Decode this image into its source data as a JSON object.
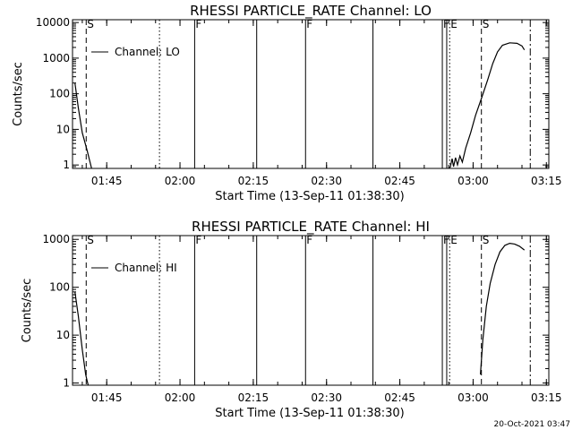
{
  "footer_timestamp": "20-Oct-2021 03:47",
  "chart_data": [
    {
      "type": "line",
      "title": "RHESSI PARTICLE_RATE Channel: LO",
      "xlabel": "Start Time (13-Sep-11 01:38:30)",
      "ylabel": "Counts/sec",
      "yscale": "log",
      "xlim": [
        -0.5,
        97
      ],
      "ylim": [
        0.8,
        12000
      ],
      "x_unit": "minutes after 01:38:30",
      "x_ticks": [
        {
          "x": 6.5,
          "label": "01:45"
        },
        {
          "x": 21.5,
          "label": "02:00"
        },
        {
          "x": 36.5,
          "label": "02:15"
        },
        {
          "x": 51.5,
          "label": "02:30"
        },
        {
          "x": 66.5,
          "label": "02:45"
        },
        {
          "x": 81.5,
          "label": "03:00"
        },
        {
          "x": 96.5,
          "label": "03:15"
        }
      ],
      "y_ticks": [
        {
          "y": 1,
          "label": "1"
        },
        {
          "y": 10,
          "label": "10"
        },
        {
          "y": 100,
          "label": "100"
        },
        {
          "y": 1000,
          "label": "1000"
        },
        {
          "y": 10000,
          "label": "10000"
        }
      ],
      "legend": {
        "label": "Channel: LO",
        "placement": "top-left"
      },
      "series": [
        {
          "name": "Channel: LO",
          "segments": [
            [
              [
                0,
                200
              ],
              [
                0.7,
                40
              ],
              [
                1.5,
                8
              ],
              [
                2.5,
                2.5
              ],
              [
                3.4,
                0.8
              ]
            ],
            [
              [
                76.8,
                0.85
              ],
              [
                77.2,
                1.5
              ],
              [
                77.5,
                0.9
              ],
              [
                77.9,
                1.6
              ],
              [
                78.3,
                1.0
              ],
              [
                78.8,
                1.8
              ],
              [
                79.3,
                1.2
              ],
              [
                80.0,
                3.0
              ],
              [
                81.0,
                8.0
              ],
              [
                82.0,
                25
              ],
              [
                83.3,
                80
              ],
              [
                84.5,
                250
              ],
              [
                85.5,
                700
              ],
              [
                86.5,
                1500
              ],
              [
                87.5,
                2300
              ],
              [
                89.0,
                2700
              ],
              [
                90.5,
                2600
              ],
              [
                91.5,
                2200
              ],
              [
                92.0,
                1700
              ]
            ]
          ]
        }
      ],
      "markers": [
        {
          "x": 2.3,
          "style": "dashed",
          "label": "S"
        },
        {
          "x": 17.3,
          "style": "dotted",
          "label": ""
        },
        {
          "x": 24.5,
          "style": "solid",
          "label": "F"
        },
        {
          "x": 37.2,
          "style": "solid",
          "label": ""
        },
        {
          "x": 47.2,
          "style": "solid",
          "label": "F"
        },
        {
          "x": 61.0,
          "style": "solid",
          "label": ""
        },
        {
          "x": 75.2,
          "style": "solid",
          "label": "F"
        },
        {
          "x": 76.1,
          "style": "solid",
          "label": ""
        },
        {
          "x": 76.7,
          "style": "dotted",
          "label": "E"
        },
        {
          "x": 83.2,
          "style": "dashed",
          "label": "S"
        },
        {
          "x": 93.2,
          "style": "dashdot",
          "label": ""
        }
      ]
    },
    {
      "type": "line",
      "title": "RHESSI PARTICLE_RATE Channel: HI",
      "xlabel": "Start Time (13-Sep-11 01:38:30)",
      "ylabel": "Counts/sec",
      "yscale": "log",
      "xlim": [
        -0.5,
        97
      ],
      "ylim": [
        0.9,
        1200
      ],
      "x_unit": "minutes after 01:38:30",
      "x_ticks": [
        {
          "x": 6.5,
          "label": "01:45"
        },
        {
          "x": 21.5,
          "label": "02:00"
        },
        {
          "x": 36.5,
          "label": "02:15"
        },
        {
          "x": 51.5,
          "label": "02:30"
        },
        {
          "x": 66.5,
          "label": "02:45"
        },
        {
          "x": 81.5,
          "label": "03:00"
        },
        {
          "x": 96.5,
          "label": "03:15"
        }
      ],
      "y_ticks": [
        {
          "y": 1,
          "label": "1"
        },
        {
          "y": 10,
          "label": "10"
        },
        {
          "y": 100,
          "label": "100"
        },
        {
          "y": 1000,
          "label": "1000"
        }
      ],
      "legend": {
        "label": "Channel: HI",
        "placement": "top-left"
      },
      "series": [
        {
          "name": "Channel: HI",
          "segments": [
            [
              [
                0,
                80
              ],
              [
                0.7,
                25
              ],
              [
                1.5,
                5
              ],
              [
                2.2,
                1.5
              ],
              [
                2.7,
                0.9
              ]
            ],
            [
              [
                83.0,
                1.5
              ],
              [
                83.5,
                8
              ],
              [
                84.2,
                40
              ],
              [
                85.0,
                120
              ],
              [
                86.0,
                300
              ],
              [
                87.0,
                550
              ],
              [
                88.0,
                750
              ],
              [
                89.0,
                830
              ],
              [
                90.0,
                800
              ],
              [
                91.0,
                720
              ],
              [
                92.0,
                600
              ]
            ]
          ]
        }
      ],
      "markers": [
        {
          "x": 2.3,
          "style": "dashed",
          "label": "S"
        },
        {
          "x": 17.3,
          "style": "dotted",
          "label": ""
        },
        {
          "x": 24.5,
          "style": "solid",
          "label": "F"
        },
        {
          "x": 37.2,
          "style": "solid",
          "label": ""
        },
        {
          "x": 47.2,
          "style": "solid",
          "label": "F"
        },
        {
          "x": 61.0,
          "style": "solid",
          "label": ""
        },
        {
          "x": 75.2,
          "style": "solid",
          "label": "F"
        },
        {
          "x": 76.1,
          "style": "solid",
          "label": ""
        },
        {
          "x": 76.7,
          "style": "dotted",
          "label": "E"
        },
        {
          "x": 83.2,
          "style": "dashed",
          "label": "S"
        },
        {
          "x": 93.2,
          "style": "dashdot",
          "label": ""
        }
      ]
    }
  ]
}
